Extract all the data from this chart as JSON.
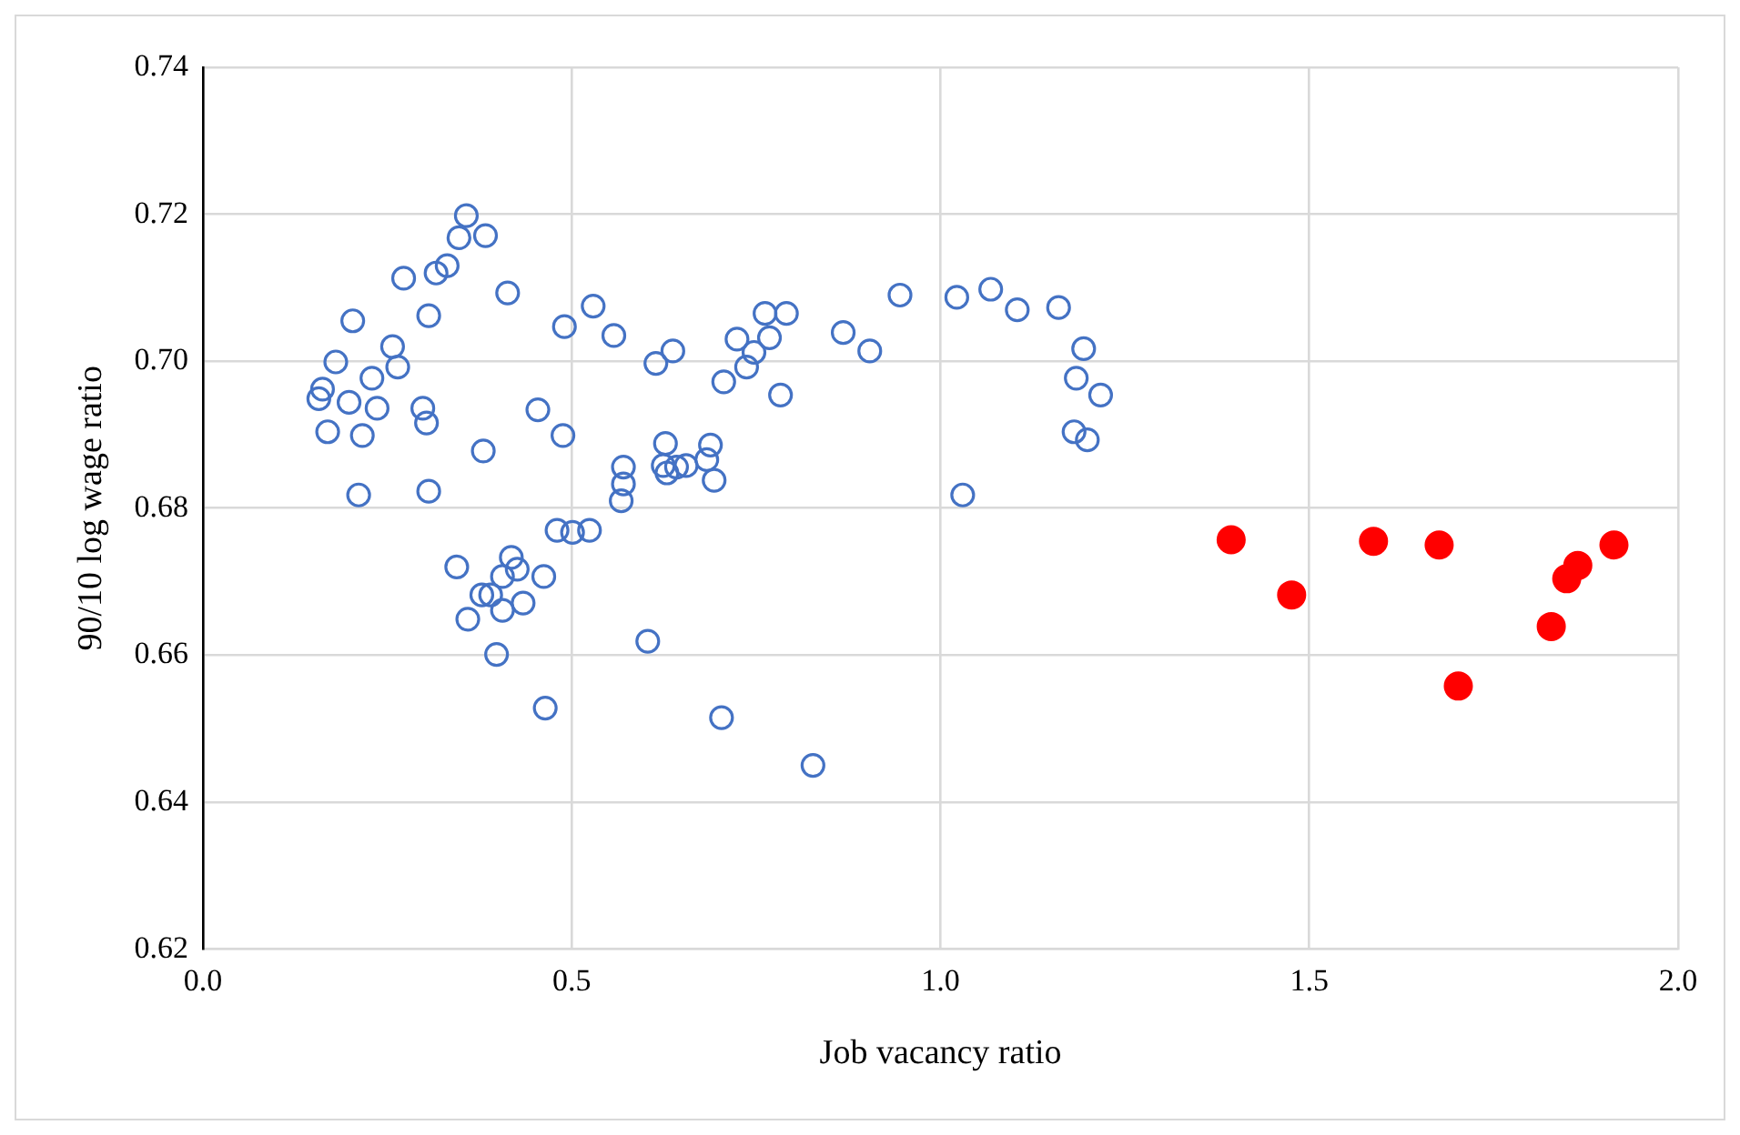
{
  "chart_data": {
    "type": "scatter",
    "xlabel": "Job vacancy ratio",
    "ylabel": "90/10 log wage ratio",
    "xlim": [
      0,
      2
    ],
    "xticks": [
      {
        "value": 0,
        "label": "0.0"
      },
      {
        "value": 0.5,
        "label": "0.5"
      },
      {
        "value": 1,
        "label": "1.0"
      },
      {
        "value": 1.5,
        "label": "1.5"
      },
      {
        "value": 2,
        "label": "2.0"
      }
    ],
    "ylim": [
      0.62,
      0.74
    ],
    "yticks": [
      {
        "value": 0.62,
        "label": "0.62"
      },
      {
        "value": 0.64,
        "label": "0.64"
      },
      {
        "value": 0.66,
        "label": "0.66"
      },
      {
        "value": 0.68,
        "label": "0.68"
      },
      {
        "value": 0.7,
        "label": "0.70"
      },
      {
        "value": 0.72,
        "label": "0.72"
      },
      {
        "value": 0.74,
        "label": "0.74"
      }
    ],
    "grid": true,
    "legend": false,
    "marker": "circle",
    "series": [
      {
        "color": "#4472c4",
        "x": [
          0.357,
          0.347,
          0.383,
          0.272,
          0.316,
          0.331,
          0.413,
          0.203,
          0.306,
          0.18,
          0.257,
          0.264,
          0.229,
          0.162,
          0.157,
          0.198,
          0.236,
          0.298,
          0.303,
          0.169,
          0.216,
          0.211,
          0.306,
          0.38,
          0.454,
          0.488,
          0.49,
          0.529,
          0.557,
          0.614,
          0.637,
          0.706,
          0.737,
          0.724,
          0.762,
          0.791,
          0.768,
          0.747,
          0.783,
          0.868,
          0.904,
          0.945,
          1.022,
          1.068,
          1.104,
          1.16,
          1.194,
          1.184,
          1.217,
          1.181,
          1.199,
          1.03,
          0.827,
          0.627,
          0.624,
          0.629,
          0.642,
          0.655,
          0.683,
          0.688,
          0.693,
          0.57,
          0.57,
          0.567,
          0.48,
          0.501,
          0.524,
          0.344,
          0.418,
          0.426,
          0.406,
          0.462,
          0.378,
          0.39,
          0.434,
          0.406,
          0.359,
          0.398,
          0.464,
          0.603,
          0.703
        ],
        "values": [
          0.7198,
          0.7168,
          0.7171,
          0.7113,
          0.712,
          0.713,
          0.7093,
          0.7055,
          0.7062,
          0.6999,
          0.702,
          0.6992,
          0.6977,
          0.6962,
          0.6949,
          0.6944,
          0.6936,
          0.6936,
          0.6916,
          0.6904,
          0.6899,
          0.6818,
          0.6823,
          0.6878,
          0.6934,
          0.6899,
          0.7047,
          0.7075,
          0.7035,
          0.6997,
          0.7014,
          0.6972,
          0.6992,
          0.703,
          0.7065,
          0.7065,
          0.7032,
          0.7012,
          0.6954,
          0.7039,
          0.7014,
          0.709,
          0.7087,
          0.7098,
          0.707,
          0.7073,
          0.7017,
          0.6977,
          0.6954,
          0.6904,
          0.6893,
          0.6818,
          0.645,
          0.6888,
          0.6858,
          0.6848,
          0.6856,
          0.6858,
          0.6866,
          0.6886,
          0.6838,
          0.6856,
          0.6833,
          0.681,
          0.677,
          0.6767,
          0.677,
          0.672,
          0.6733,
          0.6717,
          0.6707,
          0.6707,
          0.6682,
          0.6682,
          0.6671,
          0.6661,
          0.6649,
          0.6601,
          0.6528,
          0.6619,
          0.6515
        ]
      },
      {
        "color": "#ff0000",
        "x": [
          1.394,
          1.476,
          1.587,
          1.676,
          1.702,
          1.828,
          1.849,
          1.864,
          1.913
        ],
        "values": [
          0.6757,
          0.6682,
          0.6755,
          0.675,
          0.6558,
          0.6639,
          0.6704,
          0.6722,
          0.675
        ]
      }
    ]
  }
}
